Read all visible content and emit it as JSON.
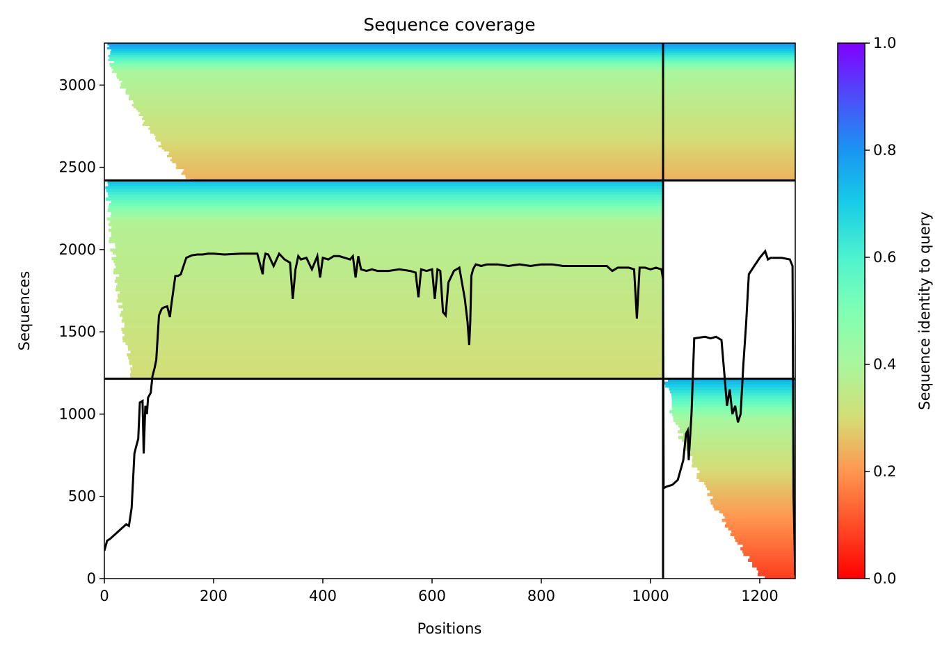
{
  "chart_data": {
    "type": "heatmap",
    "title": "Sequence coverage",
    "xlabel": "Positions",
    "ylabel": "Sequences",
    "colorbar_label": "Sequence identity to query",
    "colormap": "rainbow_r",
    "xlim": [
      0,
      1265
    ],
    "ylim": [
      0,
      3255
    ],
    "xticks": [
      0,
      200,
      400,
      600,
      800,
      1000,
      1200
    ],
    "yticks": [
      0,
      500,
      1000,
      1500,
      2000,
      2500,
      3000
    ],
    "colorbar_ticks": [
      0.0,
      0.2,
      0.4,
      0.6,
      0.8,
      1.0
    ],
    "colorbar_tick_labels": [
      "0.0",
      "0.2",
      "0.4",
      "0.6",
      "0.8",
      "1.0"
    ],
    "chain_boundary_x": 1023,
    "group_boundaries_y": [
      1215,
      2420
    ],
    "blocks": [
      {
        "group": "chain1-only",
        "x": [
          0,
          1023
        ],
        "y": [
          1215,
          2420
        ],
        "identity_top": 0.72,
        "identity_mid": 0.38,
        "identity_bottom": 0.3,
        "coverage_start_bottom": 45,
        "coverage_start_top": 0
      },
      {
        "group": "chain2-only",
        "x": [
          1023,
          1265
        ],
        "y": [
          0,
          1215
        ],
        "identity_top": 0.75,
        "identity_mid": 0.4,
        "identity_bottom": 0.08,
        "coverage_start_bottom": 1200,
        "coverage_start_top": 1023
      },
      {
        "group": "paired",
        "x": [
          0,
          1265
        ],
        "y": [
          2420,
          3255
        ],
        "identity_top": 0.8,
        "identity_mid": 0.4,
        "identity_bottom": 0.24,
        "coverage_start_bottom": 150,
        "coverage_start_top": 0
      }
    ],
    "coverage_line": {
      "x": [
        0,
        5,
        10,
        20,
        30,
        40,
        45,
        50,
        55,
        58,
        62,
        65,
        70,
        72,
        75,
        78,
        80,
        85,
        88,
        92,
        95,
        100,
        105,
        110,
        115,
        120,
        122,
        125,
        130,
        135,
        140,
        150,
        160,
        170,
        180,
        190,
        200,
        220,
        250,
        280,
        290,
        292,
        295,
        300,
        310,
        320,
        330,
        340,
        345,
        350,
        355,
        360,
        370,
        380,
        390,
        395,
        400,
        410,
        420,
        430,
        440,
        450,
        455,
        460,
        465,
        470,
        480,
        490,
        500,
        520,
        540,
        560,
        570,
        575,
        580,
        590,
        600,
        605,
        610,
        615,
        620,
        625,
        630,
        640,
        650,
        660,
        665,
        668,
        670,
        672,
        675,
        680,
        690,
        700,
        720,
        740,
        760,
        780,
        800,
        820,
        840,
        860,
        880,
        900,
        920,
        930,
        940,
        960,
        970,
        975,
        980,
        990,
        1000,
        1010,
        1020,
        1023,
        1024,
        1030,
        1040,
        1050,
        1060,
        1065,
        1068,
        1070,
        1075,
        1080,
        1090,
        1100,
        1110,
        1120,
        1130,
        1135,
        1140,
        1145,
        1150,
        1155,
        1160,
        1165,
        1170,
        1175,
        1180,
        1190,
        1200,
        1210,
        1215,
        1220,
        1240,
        1255,
        1260,
        1262,
        1265
      ],
      "y": [
        170,
        230,
        240,
        270,
        300,
        330,
        320,
        430,
        760,
        800,
        850,
        1070,
        1080,
        760,
        1050,
        1000,
        1100,
        1130,
        1230,
        1280,
        1330,
        1600,
        1640,
        1650,
        1655,
        1590,
        1650,
        1720,
        1840,
        1840,
        1850,
        1950,
        1965,
        1970,
        1970,
        1975,
        1975,
        1970,
        1975,
        1975,
        1850,
        1930,
        1975,
        1970,
        1900,
        1975,
        1940,
        1920,
        1700,
        1880,
        1960,
        1940,
        1950,
        1880,
        1960,
        1830,
        1950,
        1940,
        1960,
        1960,
        1950,
        1940,
        1960,
        1830,
        1960,
        1880,
        1870,
        1880,
        1870,
        1870,
        1880,
        1870,
        1860,
        1710,
        1880,
        1870,
        1880,
        1700,
        1880,
        1870,
        1620,
        1600,
        1800,
        1870,
        1890,
        1700,
        1560,
        1420,
        1560,
        1840,
        1880,
        1910,
        1900,
        1910,
        1910,
        1900,
        1910,
        1900,
        1910,
        1910,
        1900,
        1900,
        1900,
        1900,
        1900,
        1870,
        1890,
        1890,
        1880,
        1580,
        1890,
        1890,
        1880,
        1890,
        1880,
        1820,
        550,
        560,
        570,
        600,
        720,
        880,
        900,
        720,
        1000,
        1460,
        1465,
        1470,
        1460,
        1470,
        1450,
        1250,
        1050,
        1150,
        1000,
        1050,
        950,
        1000,
        1300,
        1550,
        1850,
        1900,
        1950,
        1990,
        1940,
        1950,
        1950,
        1940,
        1900,
        500,
        20
      ]
    }
  }
}
